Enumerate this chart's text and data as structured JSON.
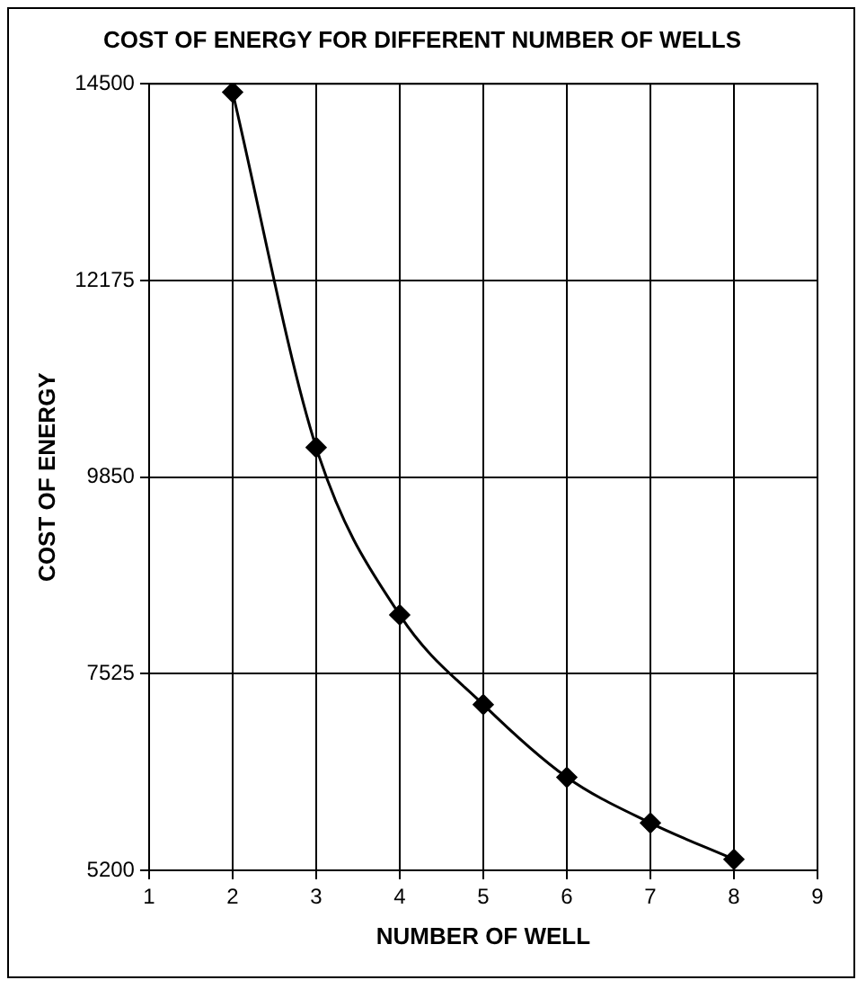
{
  "chart_data": {
    "type": "line",
    "title": "COST OF ENERGY FOR DIFFERENT NUMBER OF WELLS",
    "xlabel": "NUMBER OF WELL",
    "ylabel": "COST OF ENERGY",
    "x": [
      2,
      3,
      4,
      5,
      6,
      7,
      8
    ],
    "series": [
      {
        "color": "#000000",
        "values": [
          14400,
          10200,
          8220,
          7160,
          6300,
          5760,
          5330
        ]
      }
    ],
    "xlim": [
      1,
      9
    ],
    "xticks": [
      1,
      2,
      3,
      4,
      5,
      6,
      7,
      8,
      9
    ],
    "ylim": [
      5200,
      14500
    ],
    "yticks": [
      5200,
      7525,
      9850,
      12175,
      14500
    ],
    "grid": true,
    "marker": "diamond",
    "line_style": "solid",
    "legend": false
  }
}
